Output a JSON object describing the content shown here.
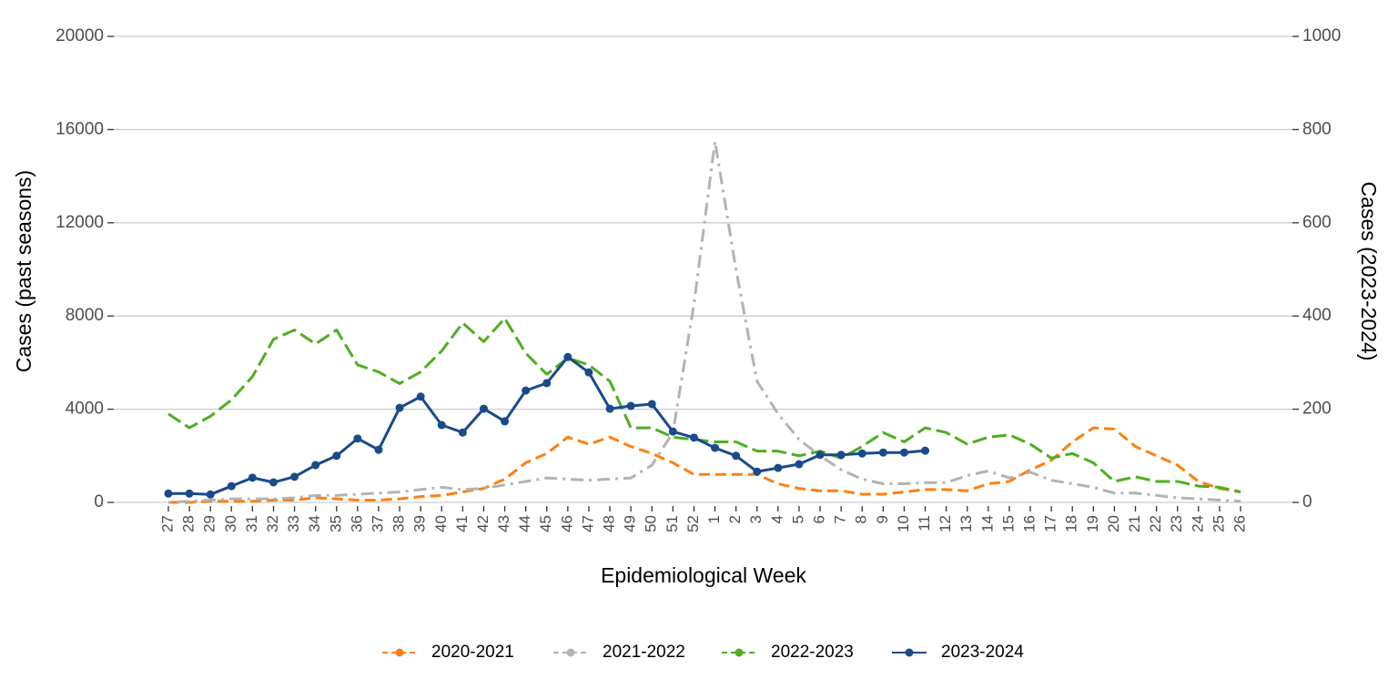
{
  "chart_data": {
    "type": "line",
    "xlabel": "Epidemiological Week",
    "ylabel": "Cases (past seasons)",
    "y2label": "Cases (2023-2024)",
    "categories": [
      "27",
      "28",
      "29",
      "30",
      "31",
      "32",
      "33",
      "34",
      "35",
      "36",
      "37",
      "38",
      "39",
      "40",
      "41",
      "42",
      "43",
      "44",
      "45",
      "46",
      "47",
      "48",
      "49",
      "50",
      "51",
      "52",
      "1",
      "2",
      "3",
      "4",
      "5",
      "6",
      "7",
      "8",
      "9",
      "10",
      "11",
      "12",
      "13",
      "14",
      "15",
      "16",
      "17",
      "18",
      "19",
      "20",
      "21",
      "22",
      "23",
      "24",
      "25",
      "26"
    ],
    "ylim": [
      0,
      20000
    ],
    "yticks": [
      0,
      4000,
      8000,
      12000,
      16000,
      20000
    ],
    "y2lim": [
      0,
      1000
    ],
    "y2ticks": [
      0,
      200,
      400,
      600,
      800,
      1000
    ],
    "grid": true,
    "legend": "bottom",
    "series": [
      {
        "name": "2020-2021",
        "color": "#ff7f0e",
        "dash": "dashed",
        "values": [
          0,
          0,
          50,
          50,
          50,
          100,
          100,
          200,
          150,
          100,
          100,
          150,
          250,
          300,
          450,
          600,
          1000,
          1700,
          2100,
          2800,
          2500,
          2800,
          2400,
          2100,
          1700,
          1200,
          1200,
          1200,
          1200,
          800,
          600,
          500,
          500,
          350,
          350,
          450,
          550,
          550,
          500,
          800,
          900,
          1400,
          1800,
          2600,
          3200,
          3150,
          2400,
          2000,
          1600,
          900,
          600,
          450
        ]
      },
      {
        "name": "2021-2022",
        "color": "#b3b3b3",
        "dash": "dotdash",
        "values": [
          0,
          50,
          100,
          150,
          150,
          150,
          200,
          300,
          300,
          350,
          400,
          450,
          550,
          650,
          550,
          600,
          750,
          900,
          1050,
          1000,
          950,
          1000,
          1050,
          1600,
          3000,
          8500,
          15500,
          10000,
          5200,
          3800,
          2700,
          2000,
          1400,
          1000,
          800,
          800,
          850,
          850,
          1150,
          1350,
          1050,
          1300,
          950,
          800,
          650,
          400,
          400,
          300,
          200,
          150,
          100,
          50
        ]
      },
      {
        "name": "2022-2023",
        "color": "#4daf1f",
        "dash": "longdash",
        "values": [
          3800,
          3200,
          3700,
          4400,
          5400,
          7000,
          7400,
          6800,
          7400,
          5900,
          5600,
          5100,
          5600,
          6500,
          7700,
          6900,
          7900,
          6400,
          5500,
          6200,
          5900,
          5200,
          3200,
          3200,
          2800,
          2700,
          2600,
          2600,
          2200,
          2200,
          2000,
          2200,
          1900,
          2400,
          3000,
          2600,
          3200,
          3000,
          2500,
          2800,
          2900,
          2500,
          1900,
          2100,
          1700,
          900,
          1100,
          900,
          900,
          700,
          650,
          450
        ]
      },
      {
        "name": "2023-2024",
        "color": "#1a4a8a",
        "dash": "solid",
        "markers": true,
        "axis": "y2",
        "values": [
          19,
          19,
          17,
          35,
          53,
          43,
          55,
          80,
          100,
          137,
          113,
          203,
          227,
          166,
          150,
          201,
          174,
          240,
          256,
          312,
          279,
          201,
          207,
          211,
          152,
          139,
          117,
          100,
          66,
          74,
          82,
          102,
          102,
          105,
          107,
          107,
          111,
          null,
          null,
          null,
          null,
          null,
          null,
          null,
          null,
          null,
          null,
          null,
          null,
          null,
          null,
          null
        ]
      }
    ]
  }
}
